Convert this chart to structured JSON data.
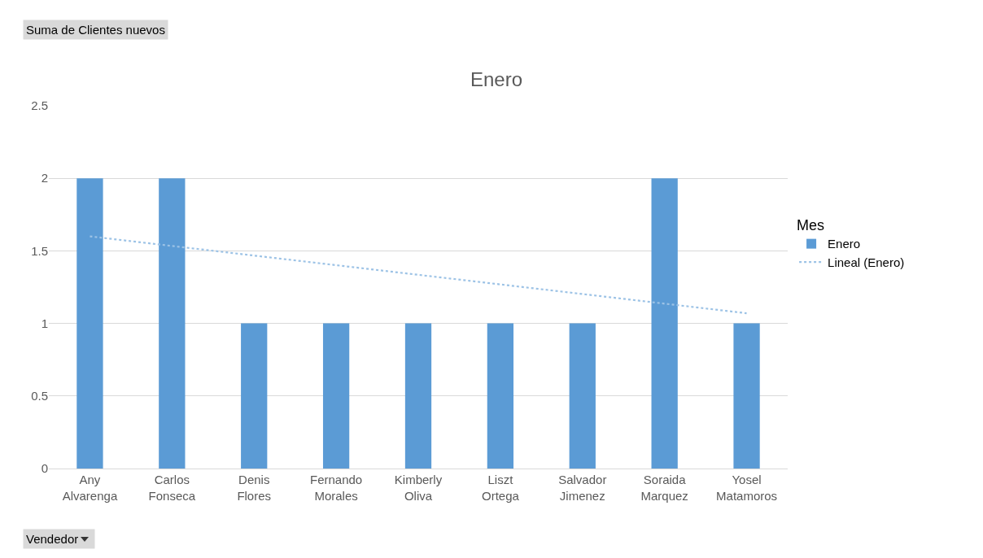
{
  "chart_data": {
    "type": "bar",
    "title": "Enero",
    "xlabel": null,
    "legend_title": "Mes",
    "categories": [
      "Any Alvarenga",
      "Carlos Fonseca",
      "Denis Flores",
      "Fernando Morales",
      "Kimberly Oliva",
      "Liszt Ortega",
      "Salvador Jimenez",
      "Soraida Marquez",
      "Yosel Matamoros"
    ],
    "series": [
      {
        "name": "Enero",
        "color": "#5b9bd5",
        "values": [
          2,
          2,
          1,
          1,
          1,
          1,
          1,
          2,
          1
        ]
      },
      {
        "name": "Lineal (Enero)",
        "type": "line",
        "line_style": "dotted",
        "color": "#9dc3e6",
        "x": [
          "Any Alvarenga",
          "Yosel Matamoros"
        ],
        "values": [
          1.6,
          1.07
        ]
      }
    ],
    "ylim": [
      0,
      2.5
    ],
    "yticks": [
      0,
      0.5,
      1,
      1.5,
      2,
      2.5
    ],
    "grid": "y",
    "legend": "right",
    "annotations": [
      "Suma de Clientes nuevos",
      "Vendedor"
    ]
  }
}
